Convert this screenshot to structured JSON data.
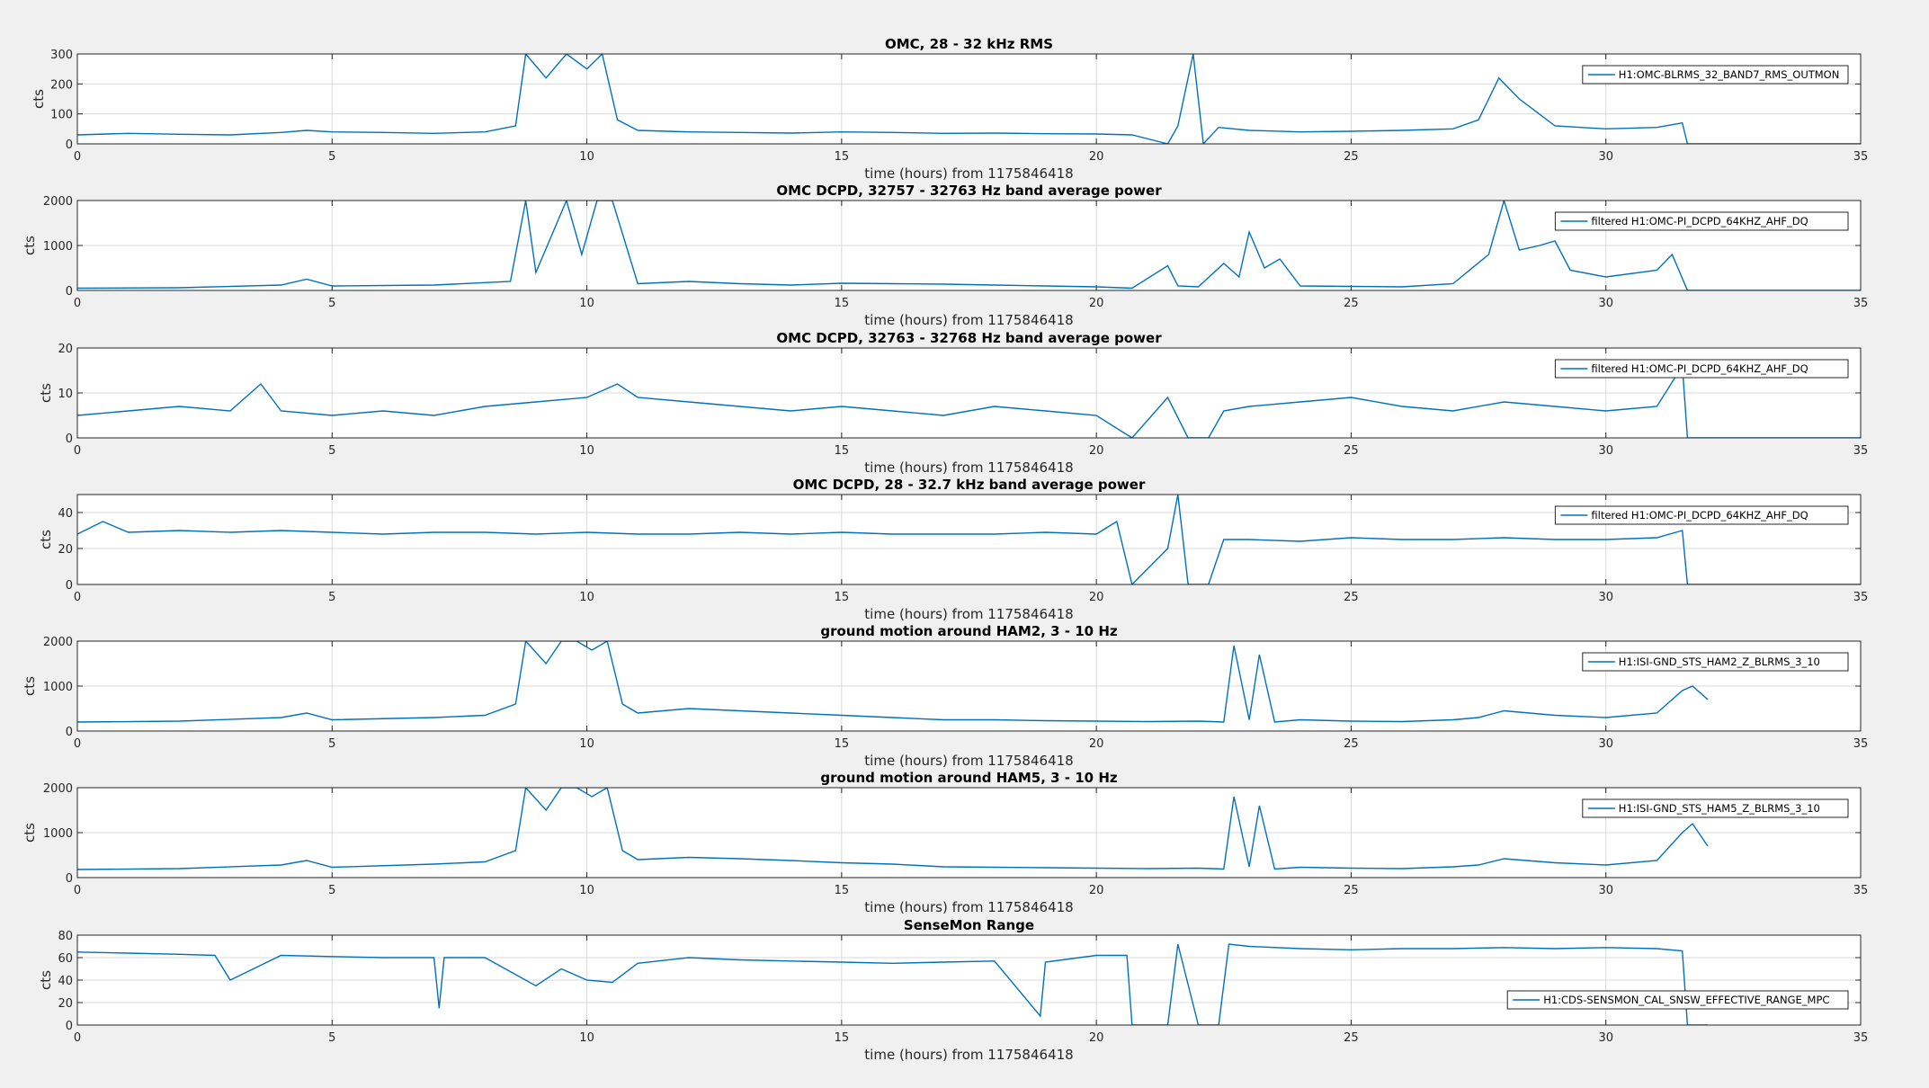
{
  "figure": {
    "background": "#f0f0f0",
    "axes_background": "#ffffff",
    "line_color": "#0072bd",
    "grid_color": "#d9d9d9"
  },
  "chart_data": [
    {
      "type": "line",
      "title": "OMC, 28 - 32 kHz RMS",
      "xlabel": "time (hours) from 1175846418",
      "ylabel": "cts",
      "xlim": [
        0,
        35
      ],
      "ylim": [
        0,
        300
      ],
      "xticks": [
        "0",
        "5",
        "10",
        "15",
        "20",
        "25",
        "30",
        "35"
      ],
      "yticks": [
        "0",
        "100",
        "200",
        "300"
      ],
      "legend": "H1:OMC-BLRMS_32_BAND7_RMS_OUTMON",
      "legend_position": "top-right",
      "grid": true,
      "series": [
        {
          "name": "H1:OMC-BLRMS_32_BAND7_RMS_OUTMON",
          "x": [
            0,
            1,
            2,
            3,
            4,
            4.5,
            5,
            6,
            7,
            8,
            8.6,
            8.8,
            9.2,
            9.6,
            10,
            10.3,
            10.6,
            11,
            12,
            13,
            14,
            15,
            16,
            17,
            18,
            19,
            20,
            20.7,
            21.4,
            21.6,
            21.9,
            22.1,
            22.4,
            23,
            24,
            25,
            26,
            27,
            27.5,
            27.9,
            28.3,
            29,
            30,
            31,
            31.5,
            31.6,
            32,
            35
          ],
          "y": [
            30,
            35,
            32,
            30,
            38,
            45,
            40,
            38,
            35,
            40,
            60,
            300,
            220,
            300,
            250,
            300,
            80,
            45,
            40,
            38,
            36,
            40,
            38,
            35,
            36,
            34,
            33,
            30,
            0,
            60,
            300,
            0,
            55,
            45,
            40,
            42,
            45,
            50,
            80,
            220,
            150,
            60,
            50,
            55,
            70,
            0,
            0,
            0
          ]
        }
      ]
    },
    {
      "type": "line",
      "title": "OMC DCPD, 32757 - 32763 Hz band average power",
      "xlabel": "time (hours) from 1175846418",
      "ylabel": "cts",
      "xlim": [
        0,
        35
      ],
      "ylim": [
        0,
        2000
      ],
      "xticks": [
        "0",
        "5",
        "10",
        "15",
        "20",
        "25",
        "30",
        "35"
      ],
      "yticks": [
        "0",
        "1000",
        "2000"
      ],
      "legend": "filtered H1:OMC-PI_DCPD_64KHZ_AHF_DQ",
      "legend_position": "top-right",
      "grid": true,
      "series": [
        {
          "name": "filtered H1:OMC-PI_DCPD_64KHZ_AHF_DQ",
          "x": [
            0,
            2,
            4,
            4.5,
            5,
            7,
            8.5,
            8.8,
            9,
            9.3,
            9.6,
            9.9,
            10.2,
            10.5,
            11,
            12,
            13,
            14,
            15,
            16,
            17,
            18,
            19,
            20,
            20.7,
            21.4,
            21.6,
            22,
            22.5,
            22.8,
            23,
            23.3,
            23.6,
            24,
            25,
            26,
            27,
            27.7,
            28,
            28.3,
            28.7,
            29,
            29.3,
            30,
            31,
            31.3,
            31.6,
            32,
            35
          ],
          "y": [
            50,
            60,
            120,
            250,
            100,
            120,
            200,
            2000,
            400,
            1200,
            2000,
            800,
            2000,
            2000,
            150,
            200,
            150,
            120,
            160,
            150,
            140,
            120,
            100,
            80,
            50,
            550,
            100,
            80,
            600,
            300,
            1300,
            500,
            700,
            100,
            90,
            80,
            150,
            800,
            2000,
            900,
            1000,
            1100,
            450,
            300,
            450,
            800,
            0,
            0,
            0
          ]
        }
      ]
    },
    {
      "type": "line",
      "title": "OMC DCPD, 32763 - 32768 Hz band average power",
      "xlabel": "time (hours) from 1175846418",
      "ylabel": "cts",
      "xlim": [
        0,
        35
      ],
      "ylim": [
        0,
        20
      ],
      "xticks": [
        "0",
        "5",
        "10",
        "15",
        "20",
        "25",
        "30",
        "35"
      ],
      "yticks": [
        "0",
        "10",
        "20"
      ],
      "legend": "filtered H1:OMC-PI_DCPD_64KHZ_AHF_DQ",
      "legend_position": "top-right",
      "grid": true,
      "series": [
        {
          "name": "filtered H1:OMC-PI_DCPD_64KHZ_AHF_DQ",
          "x": [
            0,
            1,
            2,
            3,
            3.6,
            4,
            5,
            6,
            7,
            8,
            9,
            10,
            10.6,
            11,
            12,
            13,
            14,
            15,
            16,
            17,
            18,
            19,
            20,
            20.7,
            21.4,
            21.8,
            22.2,
            22.5,
            23,
            24,
            25,
            26,
            27,
            28,
            29,
            30,
            31,
            31.5,
            31.6,
            32,
            35
          ],
          "y": [
            5,
            6,
            7,
            6,
            12,
            6,
            5,
            6,
            5,
            7,
            8,
            9,
            12,
            9,
            8,
            7,
            6,
            7,
            6,
            5,
            7,
            6,
            5,
            0,
            9,
            0,
            0,
            6,
            7,
            8,
            9,
            7,
            6,
            8,
            7,
            6,
            7,
            16,
            0,
            0,
            0
          ]
        }
      ]
    },
    {
      "type": "line",
      "title": "OMC DCPD, 28 - 32.7 kHz band average power",
      "xlabel": "time (hours) from 1175846418",
      "ylabel": "cts",
      "xlim": [
        0,
        35
      ],
      "ylim": [
        0,
        50
      ],
      "xticks": [
        "0",
        "5",
        "10",
        "15",
        "20",
        "25",
        "30",
        "35"
      ],
      "yticks": [
        "0",
        "20",
        "40"
      ],
      "legend": "filtered H1:OMC-PI_DCPD_64KHZ_AHF_DQ",
      "legend_position": "top-right",
      "grid": true,
      "series": [
        {
          "name": "filtered H1:OMC-PI_DCPD_64KHZ_AHF_DQ",
          "x": [
            0,
            0.5,
            1,
            2,
            3,
            4,
            5,
            6,
            7,
            8,
            9,
            10,
            11,
            12,
            13,
            14,
            15,
            16,
            17,
            18,
            19,
            20,
            20.4,
            20.7,
            21.4,
            21.6,
            21.8,
            22.2,
            22.5,
            23,
            24,
            25,
            26,
            27,
            28,
            29,
            30,
            31,
            31.5,
            31.6,
            32,
            35
          ],
          "y": [
            28,
            35,
            29,
            30,
            29,
            30,
            29,
            28,
            29,
            29,
            28,
            29,
            28,
            28,
            29,
            28,
            29,
            28,
            28,
            28,
            29,
            28,
            35,
            0,
            20,
            50,
            0,
            0,
            25,
            25,
            24,
            26,
            25,
            25,
            26,
            25,
            25,
            26,
            30,
            0,
            0,
            0
          ]
        }
      ]
    },
    {
      "type": "line",
      "title": "ground motion around HAM2, 3 - 10 Hz",
      "xlabel": "time (hours) from 1175846418",
      "ylabel": "cts",
      "xlim": [
        0,
        35
      ],
      "ylim": [
        0,
        2000
      ],
      "xticks": [
        "0",
        "5",
        "10",
        "15",
        "20",
        "25",
        "30",
        "35"
      ],
      "yticks": [
        "0",
        "1000",
        "2000"
      ],
      "legend": "H1:ISI-GND_STS_HAM2_Z_BLRMS_3_10",
      "legend_position": "top-right",
      "grid": true,
      "series": [
        {
          "name": "H1:ISI-GND_STS_HAM2_Z_BLRMS_3_10",
          "x": [
            0,
            2,
            4,
            4.5,
            5,
            7,
            8,
            8.6,
            8.8,
            9.2,
            9.5,
            9.8,
            10.1,
            10.4,
            10.7,
            11,
            12,
            13,
            14,
            15,
            16,
            17,
            18,
            19,
            20,
            21,
            22,
            22.5,
            22.7,
            23,
            23.2,
            23.5,
            24,
            25,
            26,
            27,
            27.5,
            28,
            29,
            30,
            31,
            31.5,
            31.7,
            32
          ],
          "y": [
            200,
            220,
            300,
            400,
            250,
            300,
            350,
            600,
            2000,
            1500,
            2000,
            2000,
            1800,
            2000,
            600,
            400,
            500,
            450,
            400,
            350,
            300,
            250,
            250,
            230,
            220,
            210,
            220,
            200,
            1900,
            250,
            1700,
            200,
            250,
            220,
            210,
            250,
            300,
            450,
            350,
            300,
            400,
            900,
            1000,
            700
          ]
        }
      ]
    },
    {
      "type": "line",
      "title": "ground motion around HAM5, 3 - 10 Hz",
      "xlabel": "time (hours) from 1175846418",
      "ylabel": "cts",
      "xlim": [
        0,
        35
      ],
      "ylim": [
        0,
        2000
      ],
      "xticks": [
        "0",
        "5",
        "10",
        "15",
        "20",
        "25",
        "30",
        "35"
      ],
      "yticks": [
        "0",
        "1000",
        "2000"
      ],
      "legend": "H1:ISI-GND_STS_HAM5_Z_BLRMS_3_10",
      "legend_position": "top-right",
      "grid": true,
      "series": [
        {
          "name": "H1:ISI-GND_STS_HAM5_Z_BLRMS_3_10",
          "x": [
            0,
            2,
            4,
            4.5,
            5,
            7,
            8,
            8.6,
            8.8,
            9.2,
            9.5,
            9.8,
            10.1,
            10.4,
            10.7,
            11,
            12,
            13,
            14,
            15,
            16,
            17,
            18,
            19,
            20,
            21,
            22,
            22.5,
            22.7,
            23,
            23.2,
            23.5,
            24,
            25,
            26,
            27,
            27.5,
            28,
            29,
            30,
            31,
            31.5,
            31.7,
            32
          ],
          "y": [
            180,
            200,
            280,
            380,
            230,
            300,
            350,
            600,
            2000,
            1500,
            2000,
            2000,
            1800,
            2000,
            600,
            400,
            450,
            420,
            380,
            330,
            300,
            240,
            230,
            220,
            210,
            200,
            210,
            190,
            1800,
            240,
            1600,
            190,
            230,
            210,
            200,
            240,
            280,
            420,
            330,
            280,
            380,
            1000,
            1200,
            700
          ]
        }
      ]
    },
    {
      "type": "line",
      "title": "SenseMon Range",
      "xlabel": "time (hours) from 1175846418",
      "ylabel": "cts",
      "xlim": [
        0,
        35
      ],
      "ylim": [
        0,
        80
      ],
      "xticks": [
        "0",
        "5",
        "10",
        "15",
        "20",
        "25",
        "30",
        "35"
      ],
      "yticks": [
        "0",
        "20",
        "40",
        "60",
        "80"
      ],
      "legend": "H1:CDS-SENSMON_CAL_SNSW_EFFECTIVE_RANGE_MPC",
      "legend_position": "bottom-right",
      "grid": true,
      "series": [
        {
          "name": "H1:CDS-SENSMON_CAL_SNSW_EFFECTIVE_RANGE_MPC",
          "x": [
            0,
            1,
            2,
            2.7,
            3,
            4,
            5,
            6,
            7,
            7.1,
            7.2,
            8,
            9,
            9.5,
            10,
            10.5,
            11,
            12,
            13,
            14,
            15,
            16,
            17,
            18,
            18.9,
            19,
            20,
            20.6,
            20.7,
            21.4,
            21.6,
            22,
            22.4,
            22.6,
            23,
            24,
            25,
            26,
            27,
            28,
            29,
            30,
            31,
            31.5,
            31.6,
            32
          ],
          "y": [
            65,
            64,
            63,
            62,
            40,
            62,
            61,
            60,
            60,
            15,
            60,
            60,
            35,
            50,
            40,
            38,
            55,
            60,
            58,
            57,
            56,
            55,
            56,
            57,
            8,
            56,
            62,
            62,
            0,
            0,
            72,
            0,
            0,
            72,
            70,
            68,
            67,
            68,
            68,
            69,
            68,
            69,
            68,
            66,
            0,
            0
          ]
        }
      ]
    }
  ]
}
